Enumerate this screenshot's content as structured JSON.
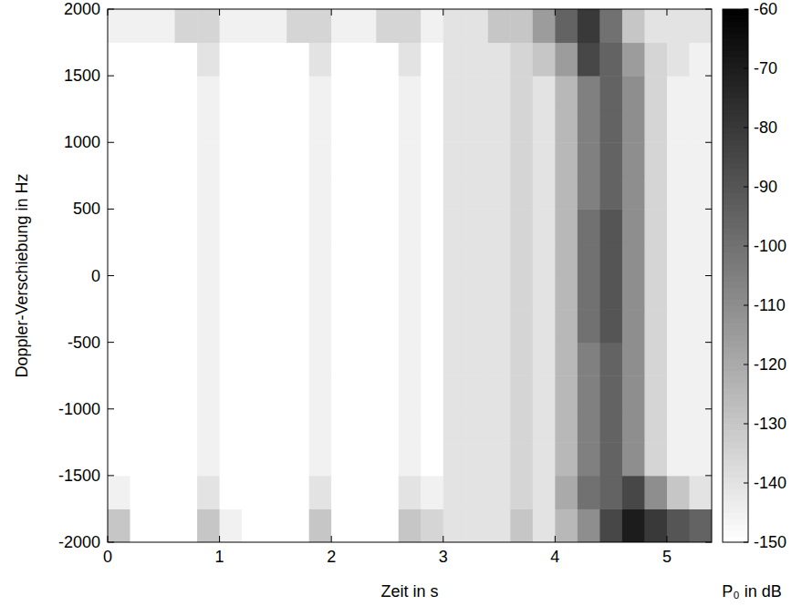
{
  "chart_data": {
    "type": "heatmap",
    "x_label": "Zeit in s",
    "y_label": "Doppler-Verschiebung in Hz",
    "xlim": [
      0,
      5.4
    ],
    "xticks": [
      0,
      1,
      2,
      3,
      4,
      5
    ],
    "ylim": [
      -2000,
      2000
    ],
    "yticks": [
      -2000,
      -1500,
      -1000,
      -500,
      0,
      500,
      1000,
      1500,
      2000
    ],
    "color": "#000000",
    "x_bins": [
      0,
      0.2,
      0.4,
      0.6,
      0.8,
      1,
      1.2,
      1.4,
      1.6,
      1.8,
      2,
      2.2,
      2.4,
      2.6,
      2.8,
      3,
      3.2,
      3.4,
      3.6,
      3.8,
      4,
      4.2,
      4.4,
      4.6,
      4.8,
      5,
      5.2,
      5.4
    ],
    "y_bins": [
      -2000,
      -1750,
      -1500,
      -1250,
      -1000,
      -750,
      -500,
      -250,
      0,
      250,
      500,
      750,
      1000,
      1250,
      1500,
      1750,
      2000
    ],
    "cells": [
      [
        -130,
        -150,
        -150,
        -150,
        -130,
        -145,
        -150,
        -150,
        -150,
        -130,
        -150,
        -150,
        -150,
        -130,
        -135,
        -140,
        -140,
        -140,
        -130,
        -140,
        -125,
        -110,
        -85,
        -70,
        -80,
        -90,
        -95
      ],
      [
        -145,
        -150,
        -150,
        -150,
        -140,
        -150,
        -150,
        -150,
        -150,
        -140,
        -150,
        -150,
        -150,
        -140,
        -145,
        -140,
        -140,
        -140,
        -135,
        -140,
        -120,
        -100,
        -95,
        -85,
        -110,
        -130,
        -140
      ],
      [
        -150,
        -150,
        -150,
        -150,
        -145,
        -150,
        -150,
        -150,
        -150,
        -145,
        -150,
        -150,
        -150,
        -145,
        -150,
        -140,
        -140,
        -140,
        -135,
        -140,
        -125,
        -105,
        -95,
        -110,
        -135,
        -145,
        -145
      ],
      [
        -150,
        -150,
        -150,
        -150,
        -145,
        -150,
        -150,
        -150,
        -150,
        -145,
        -150,
        -150,
        -150,
        -145,
        -150,
        -140,
        -140,
        -140,
        -135,
        -140,
        -125,
        -105,
        -95,
        -110,
        -135,
        -145,
        -145
      ],
      [
        -150,
        -150,
        -150,
        -150,
        -145,
        -150,
        -150,
        -150,
        -150,
        -145,
        -150,
        -150,
        -150,
        -145,
        -150,
        -140,
        -140,
        -140,
        -135,
        -140,
        -125,
        -105,
        -95,
        -110,
        -135,
        -145,
        -145
      ],
      [
        -150,
        -150,
        -150,
        -150,
        -145,
        -150,
        -150,
        -150,
        -150,
        -145,
        -150,
        -150,
        -150,
        -145,
        -150,
        -140,
        -140,
        -140,
        -135,
        -140,
        -125,
        -105,
        -95,
        -110,
        -135,
        -145,
        -145
      ],
      [
        -150,
        -150,
        -150,
        -150,
        -145,
        -150,
        -150,
        -150,
        -150,
        -145,
        -150,
        -150,
        -150,
        -145,
        -150,
        -140,
        -140,
        -140,
        -135,
        -140,
        -125,
        -100,
        -90,
        -110,
        -135,
        -145,
        -145
      ],
      [
        -150,
        -150,
        -150,
        -150,
        -145,
        -150,
        -150,
        -150,
        -150,
        -145,
        -150,
        -150,
        -150,
        -145,
        -150,
        -140,
        -140,
        -140,
        -135,
        -140,
        -125,
        -100,
        -90,
        -110,
        -135,
        -145,
        -145
      ],
      [
        -150,
        -150,
        -150,
        -150,
        -145,
        -150,
        -150,
        -150,
        -150,
        -145,
        -150,
        -150,
        -150,
        -145,
        -150,
        -140,
        -140,
        -140,
        -135,
        -140,
        -125,
        -100,
        -90,
        -110,
        -135,
        -145,
        -145
      ],
      [
        -150,
        -150,
        -150,
        -150,
        -145,
        -150,
        -150,
        -150,
        -150,
        -145,
        -150,
        -150,
        -150,
        -145,
        -150,
        -140,
        -140,
        -140,
        -135,
        -140,
        -125,
        -100,
        -90,
        -110,
        -135,
        -145,
        -145
      ],
      [
        -150,
        -150,
        -150,
        -150,
        -145,
        -150,
        -150,
        -150,
        -150,
        -145,
        -150,
        -150,
        -150,
        -145,
        -150,
        -140,
        -140,
        -140,
        -135,
        -140,
        -125,
        -105,
        -95,
        -110,
        -135,
        -145,
        -145
      ],
      [
        -150,
        -150,
        -150,
        -150,
        -145,
        -150,
        -150,
        -150,
        -150,
        -145,
        -150,
        -150,
        -150,
        -145,
        -150,
        -140,
        -140,
        -140,
        -135,
        -140,
        -125,
        -105,
        -95,
        -110,
        -135,
        -145,
        -145
      ],
      [
        -150,
        -150,
        -150,
        -150,
        -145,
        -150,
        -150,
        -150,
        -150,
        -145,
        -150,
        -150,
        -150,
        -145,
        -150,
        -140,
        -140,
        -140,
        -135,
        -140,
        -125,
        -105,
        -95,
        -110,
        -135,
        -145,
        -145
      ],
      [
        -150,
        -150,
        -150,
        -150,
        -145,
        -150,
        -150,
        -150,
        -150,
        -145,
        -150,
        -150,
        -150,
        -145,
        -150,
        -140,
        -140,
        -140,
        -135,
        -140,
        -125,
        -105,
        -95,
        -110,
        -135,
        -145,
        -145
      ],
      [
        -150,
        -150,
        -150,
        -150,
        -140,
        -150,
        -150,
        -150,
        -150,
        -140,
        -150,
        -150,
        -150,
        -140,
        -150,
        -140,
        -140,
        -140,
        -135,
        -130,
        -115,
        -85,
        -95,
        -115,
        -135,
        -140,
        -145
      ],
      [
        -145,
        -145,
        -145,
        -135,
        -135,
        -145,
        -145,
        -145,
        -135,
        -135,
        -145,
        -145,
        -135,
        -135,
        -145,
        -140,
        -140,
        -130,
        -130,
        -115,
        -95,
        -80,
        -100,
        -130,
        -140,
        -140,
        -140
      ]
    ],
    "color_range": [
      -150,
      -60
    ],
    "color_ticks": [
      -60,
      -70,
      -80,
      -90,
      -100,
      -110,
      -120,
      -130,
      -140,
      -150
    ],
    "color_label": "P₀ in dB"
  }
}
